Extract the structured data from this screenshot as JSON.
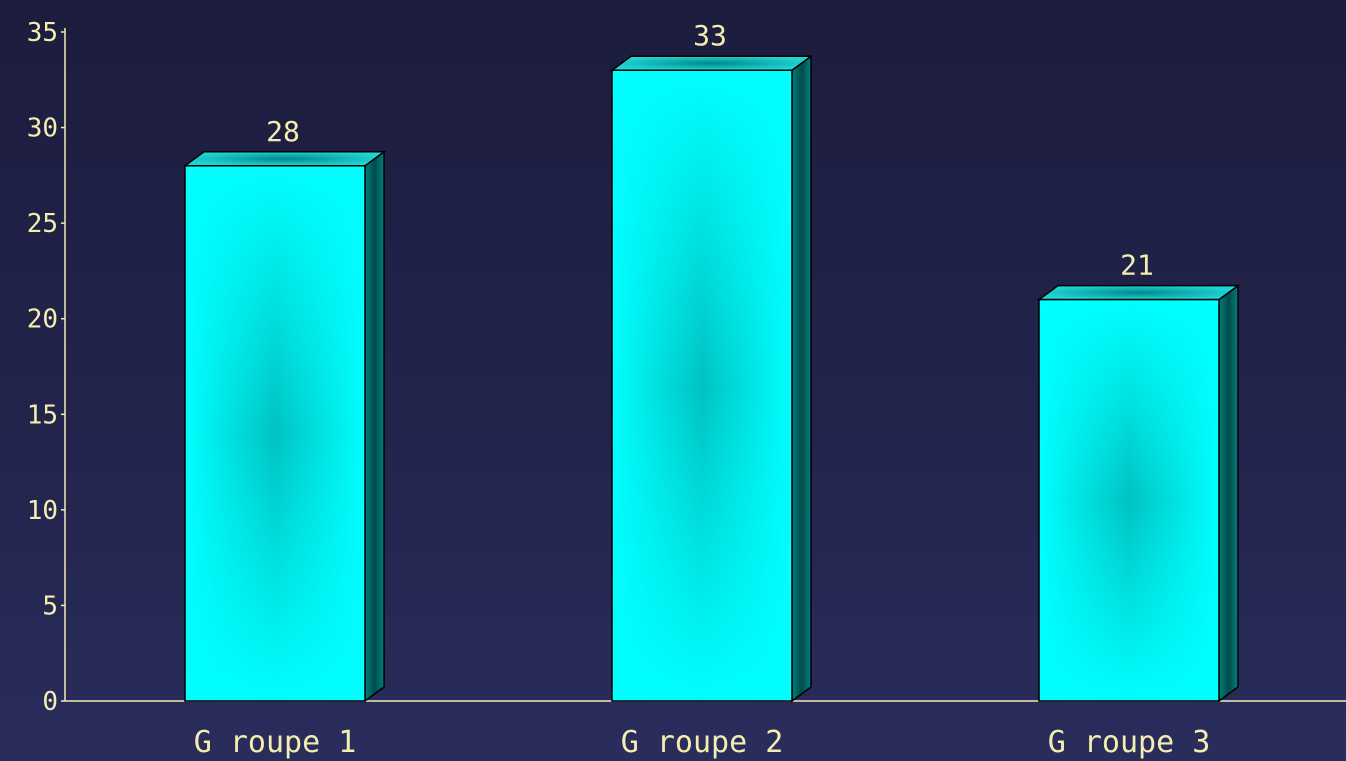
{
  "chart_data": {
    "type": "bar",
    "categories": [
      "G roupe 1",
      "G roupe 2",
      "G roupe 3"
    ],
    "values": [
      28,
      33,
      21
    ],
    "data_labels": [
      "28",
      "33",
      "21"
    ],
    "title": "",
    "xlabel": "",
    "ylabel": "",
    "ylim": [
      0,
      35
    ],
    "yticks": [
      "0",
      "5",
      "10",
      "15",
      "20",
      "25",
      "30",
      "35"
    ],
    "grid": false,
    "legend": "none",
    "style": "3d",
    "colors": {
      "bar_front": "#00ffff",
      "bar_center": "#00bfc0",
      "bar_side": "#007878",
      "bar_top": "#1fd4d4",
      "text": "#f3eeb0",
      "background": "#22244c"
    }
  }
}
